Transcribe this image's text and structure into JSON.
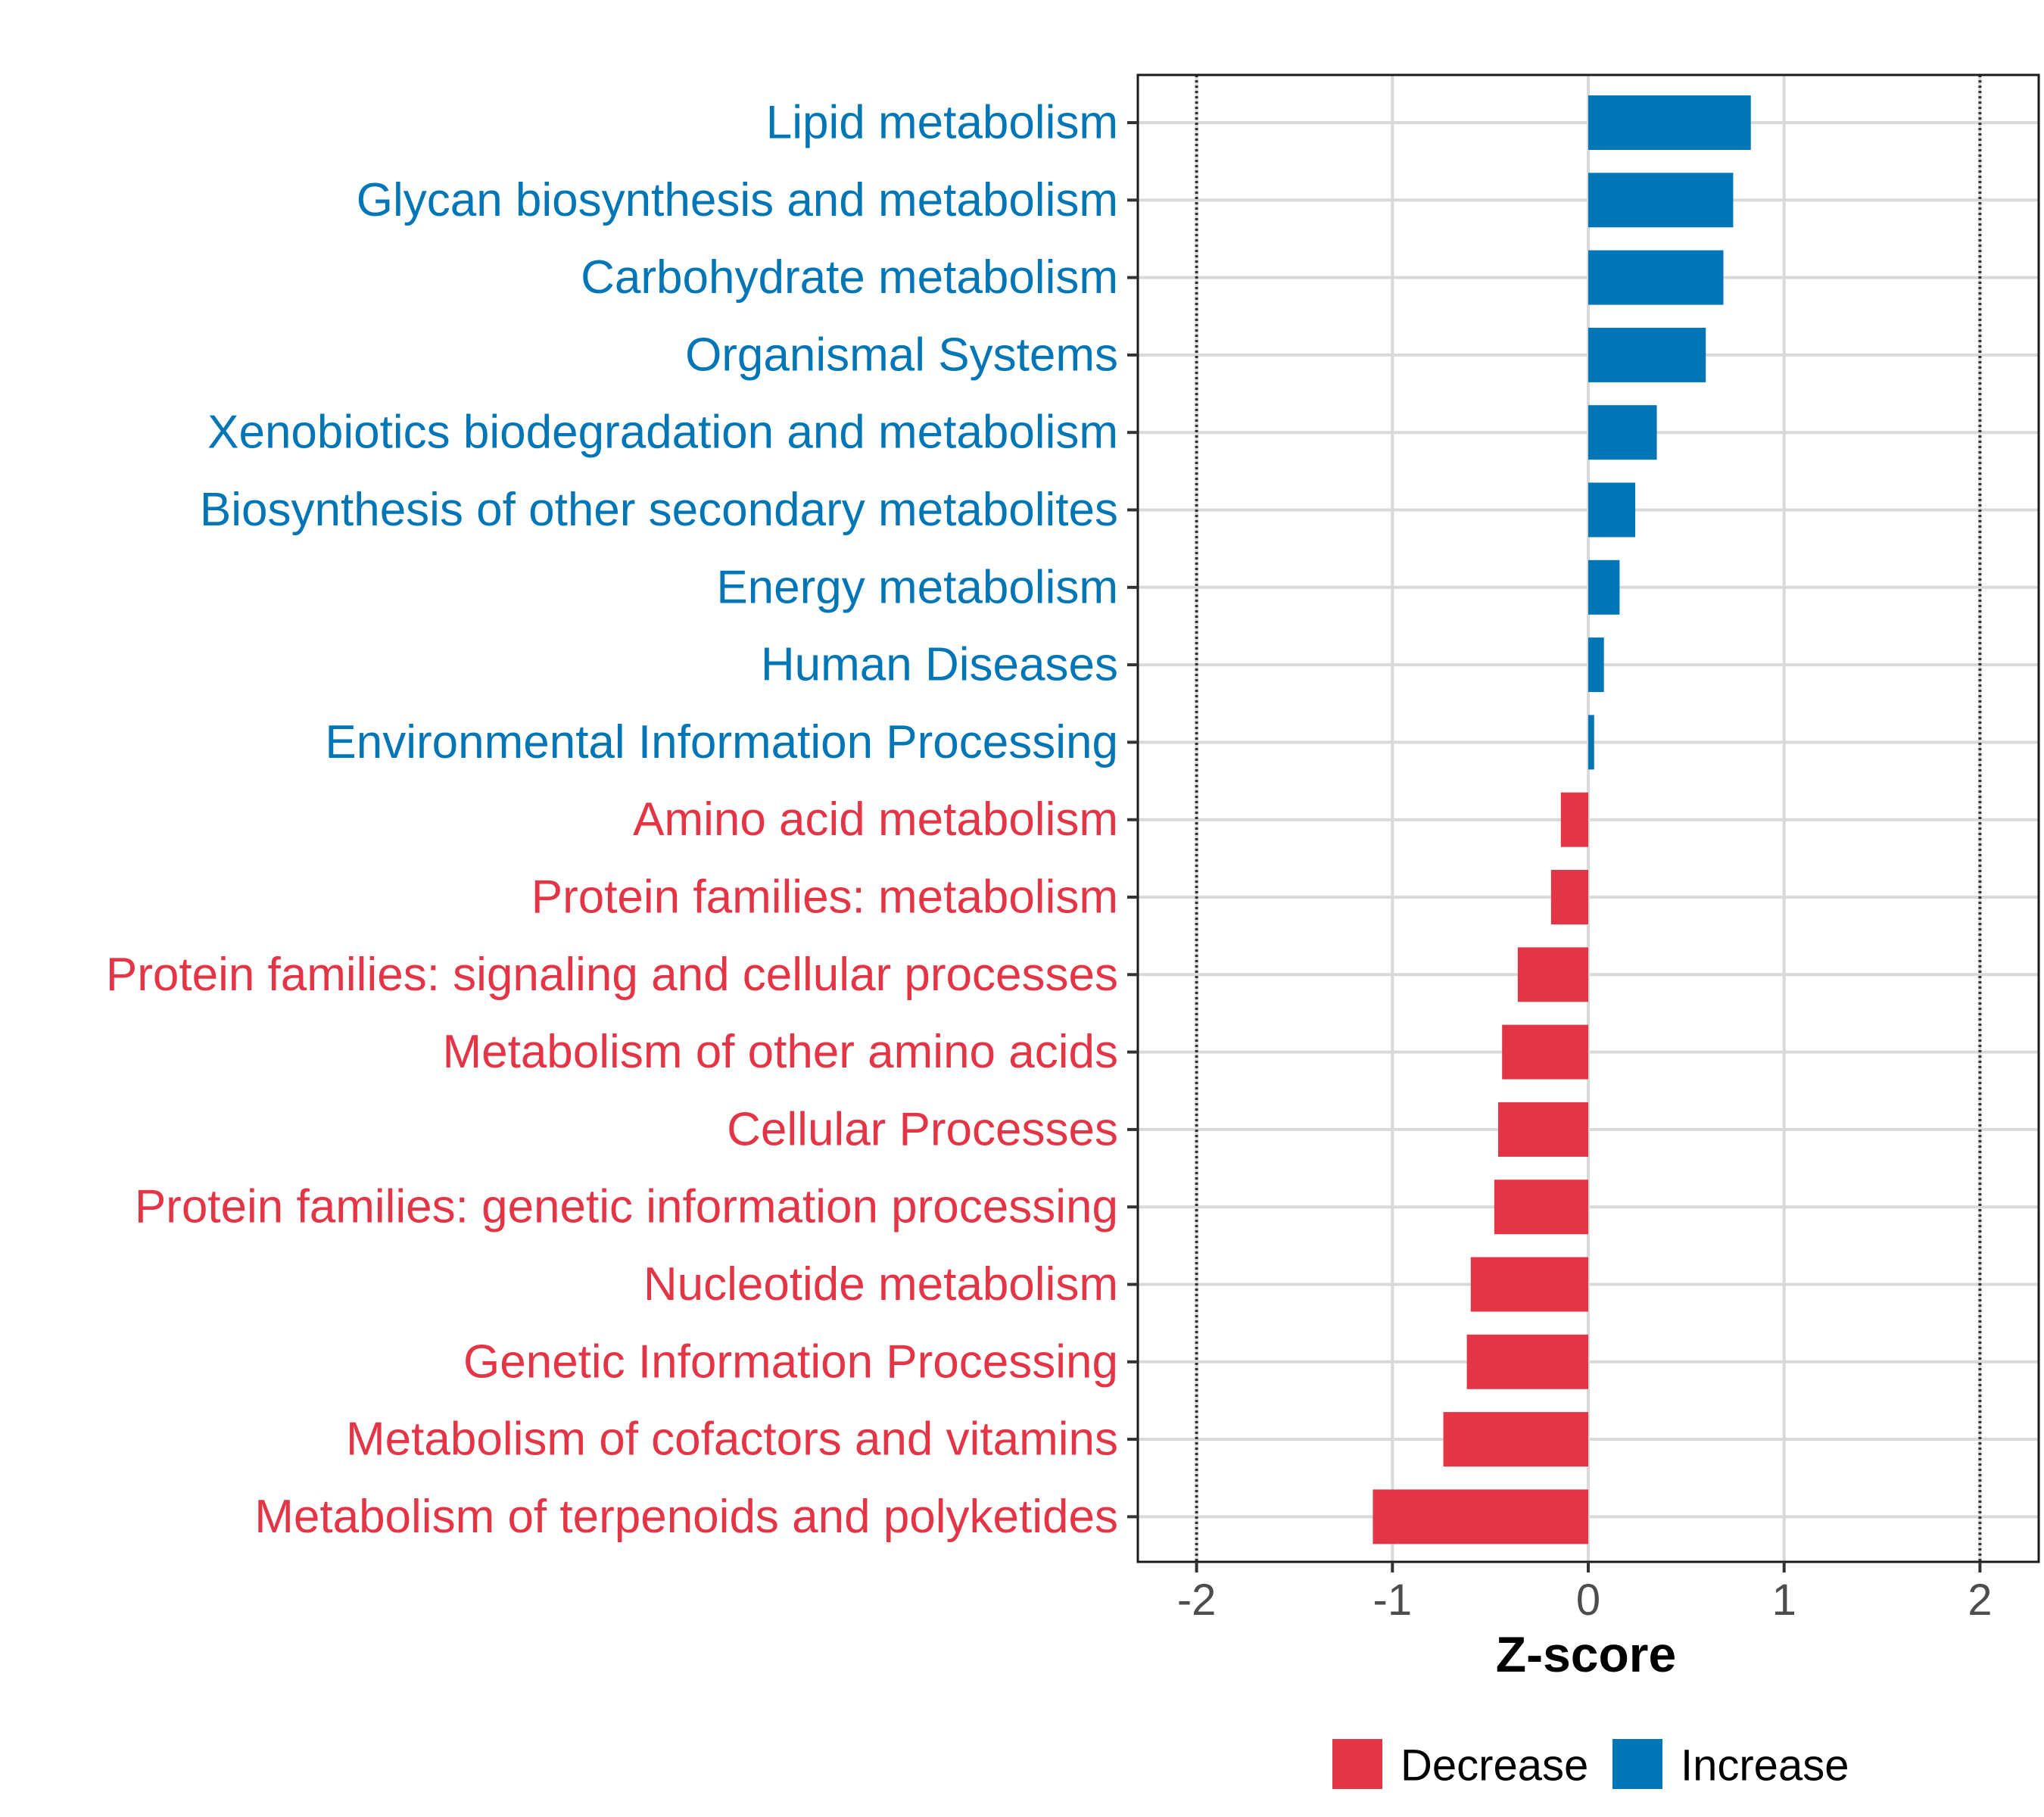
{
  "chart_data": {
    "type": "bar",
    "orientation": "horizontal",
    "title": "",
    "xlabel": "Z-score",
    "ylabel": "",
    "xlim": [
      -2.3,
      2.3
    ],
    "xticks": [
      -2,
      -1,
      0,
      1,
      2
    ],
    "xtick_labels": [
      "-2",
      "-1",
      "0",
      "1",
      "2"
    ],
    "reference_lines": [
      -2,
      2
    ],
    "grid": true,
    "legend_position": "bottom",
    "colors": {
      "Decrease": "#E43546",
      "Increase": "#0076B6"
    },
    "legend": [
      {
        "label": "Decrease",
        "color": "#E43546"
      },
      {
        "label": "Increase",
        "color": "#0076B6"
      }
    ],
    "categories": [
      "Lipid metabolism",
      "Glycan biosynthesis and metabolism",
      "Carbohydrate metabolism",
      "Organismal Systems",
      "Xenobiotics biodegradation and metabolism",
      "Biosynthesis of other secondary metabolites",
      "Energy metabolism",
      "Human Diseases",
      "Environmental Information Processing",
      "Amino acid metabolism",
      "Protein families: metabolism",
      "Protein families: signaling and cellular processes",
      "Metabolism of other amino acids",
      "Cellular Processes",
      "Protein families: genetic information processing",
      "Nucleotide metabolism",
      "Genetic Information Processing",
      "Metabolism of cofactors and vitamins",
      "Metabolism of terpenoids and polyketides"
    ],
    "values": [
      0.83,
      0.74,
      0.69,
      0.6,
      0.35,
      0.24,
      0.16,
      0.08,
      0.03,
      -0.14,
      -0.19,
      -0.36,
      -0.44,
      -0.46,
      -0.48,
      -0.6,
      -0.62,
      -0.74,
      -1.1
    ],
    "groups": [
      "Increase",
      "Increase",
      "Increase",
      "Increase",
      "Increase",
      "Increase",
      "Increase",
      "Increase",
      "Increase",
      "Decrease",
      "Decrease",
      "Decrease",
      "Decrease",
      "Decrease",
      "Decrease",
      "Decrease",
      "Decrease",
      "Decrease",
      "Decrease"
    ]
  }
}
